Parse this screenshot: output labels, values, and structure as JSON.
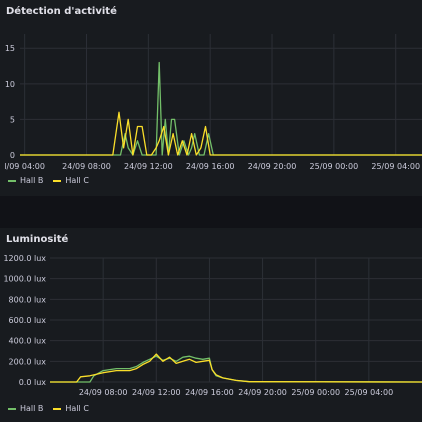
{
  "panels": [
    {
      "title": "Détection d'activité",
      "legend": [
        {
          "label": "Hall B",
          "color": "#73bf69"
        },
        {
          "label": "Hall C",
          "color": "#fade2a"
        }
      ]
    },
    {
      "title": "Luminosité",
      "legend": [
        {
          "label": "Hall B",
          "color": "#73bf69"
        },
        {
          "label": "Hall C",
          "color": "#fade2a"
        }
      ]
    }
  ],
  "chart_data": [
    {
      "type": "line",
      "title": "Détection d'activité",
      "ylim": [
        0,
        17
      ],
      "yticks": [
        "15",
        "10",
        "5",
        "0"
      ],
      "yvalues": [
        15,
        10,
        5,
        0
      ],
      "xticks": [
        "l/09 04:00",
        "24/09 08:00",
        "24/09 12:00",
        "24/09 16:00",
        "24/09 20:00",
        "25/09 00:00",
        "25/09 04:00"
      ],
      "xrange_hours": [
        4,
        30
      ],
      "series": [
        {
          "name": "Hall B",
          "color": "#73bf69",
          "x": [
            4,
            10.5,
            10.8,
            11.0,
            11.3,
            11.6,
            11.9,
            12.2,
            12.5,
            12.8,
            13.0,
            13.2,
            13.4,
            13.6,
            13.8,
            14.0,
            14.3,
            14.6,
            14.9,
            15.1,
            15.3,
            15.6,
            15.9,
            16.2,
            16.5,
            30
          ],
          "values": [
            0,
            0,
            3,
            1,
            0,
            2,
            0,
            0,
            0,
            0,
            13,
            0,
            5,
            0,
            5,
            5,
            0,
            2,
            0,
            1,
            3,
            0,
            0,
            3,
            0,
            0
          ]
        },
        {
          "name": "Hall C",
          "color": "#fade2a",
          "x": [
            4,
            10.0,
            10.4,
            10.7,
            11.0,
            11.3,
            11.6,
            11.9,
            12.2,
            12.5,
            12.8,
            13.0,
            13.3,
            13.6,
            13.9,
            14.2,
            14.5,
            14.8,
            15.1,
            15.4,
            15.7,
            16.0,
            16.3,
            16.6,
            30
          ],
          "values": [
            0,
            0,
            6,
            1,
            5,
            0,
            4,
            4,
            0,
            0,
            1,
            2,
            4,
            0,
            3,
            0,
            2,
            0,
            3,
            0,
            1,
            4,
            0,
            0,
            0
          ]
        }
      ]
    },
    {
      "type": "line",
      "title": "Luminosité",
      "ylim": [
        0,
        1200
      ],
      "yticks": [
        "1200.0 lux",
        "1000.0 lux",
        "800.0 lux",
        "600.0 lux",
        "400.0 lux",
        "200.0 lux",
        "0.0 lux"
      ],
      "yvalues": [
        1200,
        1000,
        800,
        600,
        400,
        200,
        0
      ],
      "xticks": [
        "24/09 08:00",
        "24/09 12:00",
        "24/09 16:00",
        "24/09 20:00",
        "25/09 00:00",
        "25/09 04:00"
      ],
      "xrange_hours": [
        4,
        32
      ],
      "series": [
        {
          "name": "Hall B",
          "color": "#73bf69",
          "x": [
            4,
            7.0,
            7.3,
            8.0,
            9.0,
            10.0,
            10.5,
            11.0,
            11.5,
            12.0,
            12.5,
            13.0,
            13.5,
            14.0,
            14.5,
            15.0,
            15.5,
            16.0,
            16.2,
            16.5,
            17.0,
            18.0,
            19.0,
            32
          ],
          "values": [
            0,
            0,
            60,
            110,
            130,
            130,
            150,
            190,
            220,
            250,
            210,
            230,
            200,
            240,
            250,
            230,
            220,
            230,
            120,
            60,
            40,
            15,
            3,
            0
          ]
        },
        {
          "name": "Hall C",
          "color": "#fade2a",
          "x": [
            4,
            6.0,
            6.3,
            7.0,
            8.0,
            9.0,
            10.0,
            10.5,
            11.0,
            11.5,
            12.0,
            12.5,
            13.0,
            13.5,
            14.0,
            14.5,
            15.0,
            15.5,
            16.0,
            16.2,
            16.5,
            17.0,
            18.0,
            19.0,
            32
          ],
          "values": [
            0,
            0,
            50,
            60,
            90,
            110,
            110,
            130,
            170,
            200,
            270,
            200,
            240,
            180,
            200,
            220,
            190,
            200,
            210,
            120,
            70,
            40,
            15,
            3,
            0
          ]
        }
      ]
    }
  ]
}
